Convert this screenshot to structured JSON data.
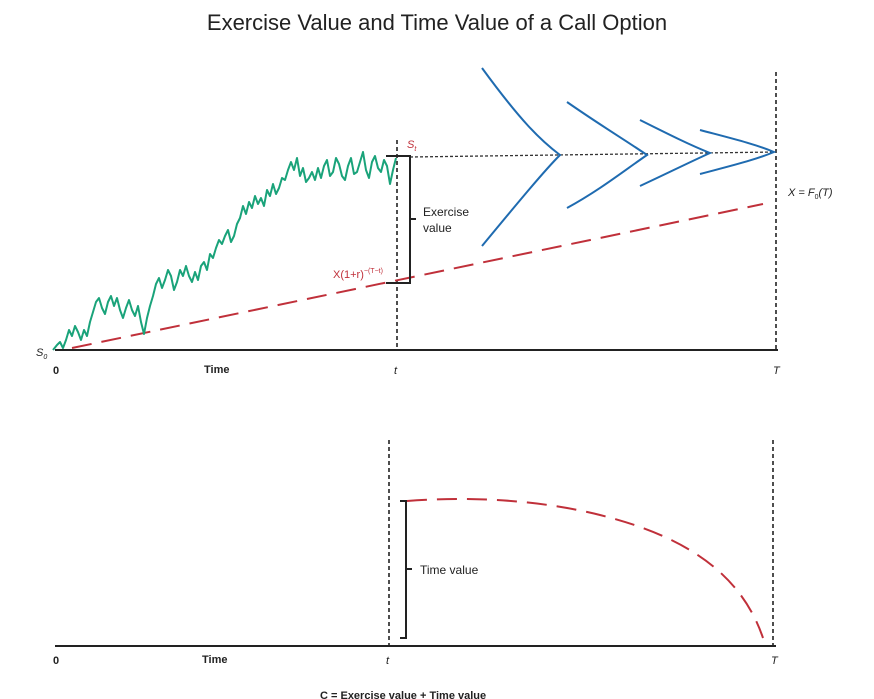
{
  "title": "Exercise Value and Time Value of a Call Option",
  "top_panel": {
    "origin_label": "0",
    "s0_label": "S",
    "s0_sub": "0",
    "time_label": "Time",
    "t_label": "t",
    "T_label": "T",
    "st_label": "S",
    "st_sub": "t",
    "exercise_label_line1": "Exercise",
    "exercise_label_line2": "value",
    "discounted_strike": {
      "main": "X(1+r)",
      "exp": "−(T−t)"
    },
    "forward_label": {
      "pre": "X = F",
      "sub": "0",
      "post": "(T)"
    }
  },
  "bottom_panel": {
    "origin_label": "0",
    "time_label": "Time",
    "t_label": "t",
    "T_label": "T",
    "time_value_label": "Time value",
    "formula": "C = Exercise value + Time value"
  },
  "colors": {
    "price_path": "#1aa37a",
    "strike_line": "#c0303a",
    "distributions": "#1f6bb0",
    "axis": "#222222"
  }
}
